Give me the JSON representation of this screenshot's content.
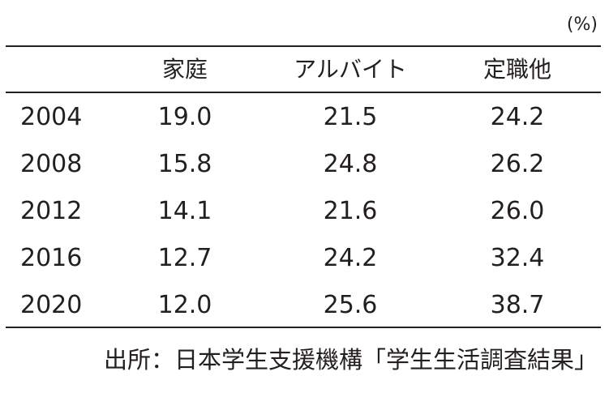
{
  "unit": "(%)",
  "chart_data": {
    "type": "table",
    "columns": [
      "",
      "家庭",
      "アルバイト",
      "定職他"
    ],
    "rows": [
      {
        "year": "2004",
        "values": [
          "19.0",
          "21.5",
          "24.2"
        ]
      },
      {
        "year": "2008",
        "values": [
          "15.8",
          "24.8",
          "26.2"
        ]
      },
      {
        "year": "2012",
        "values": [
          "14.1",
          "21.6",
          "26.0"
        ]
      },
      {
        "year": "2016",
        "values": [
          "12.7",
          "24.2",
          "32.4"
        ]
      },
      {
        "year": "2020",
        "values": [
          "12.0",
          "25.6",
          "38.7"
        ]
      }
    ]
  },
  "source": "出所：日本学生支援機構「学生生活調査結果」"
}
